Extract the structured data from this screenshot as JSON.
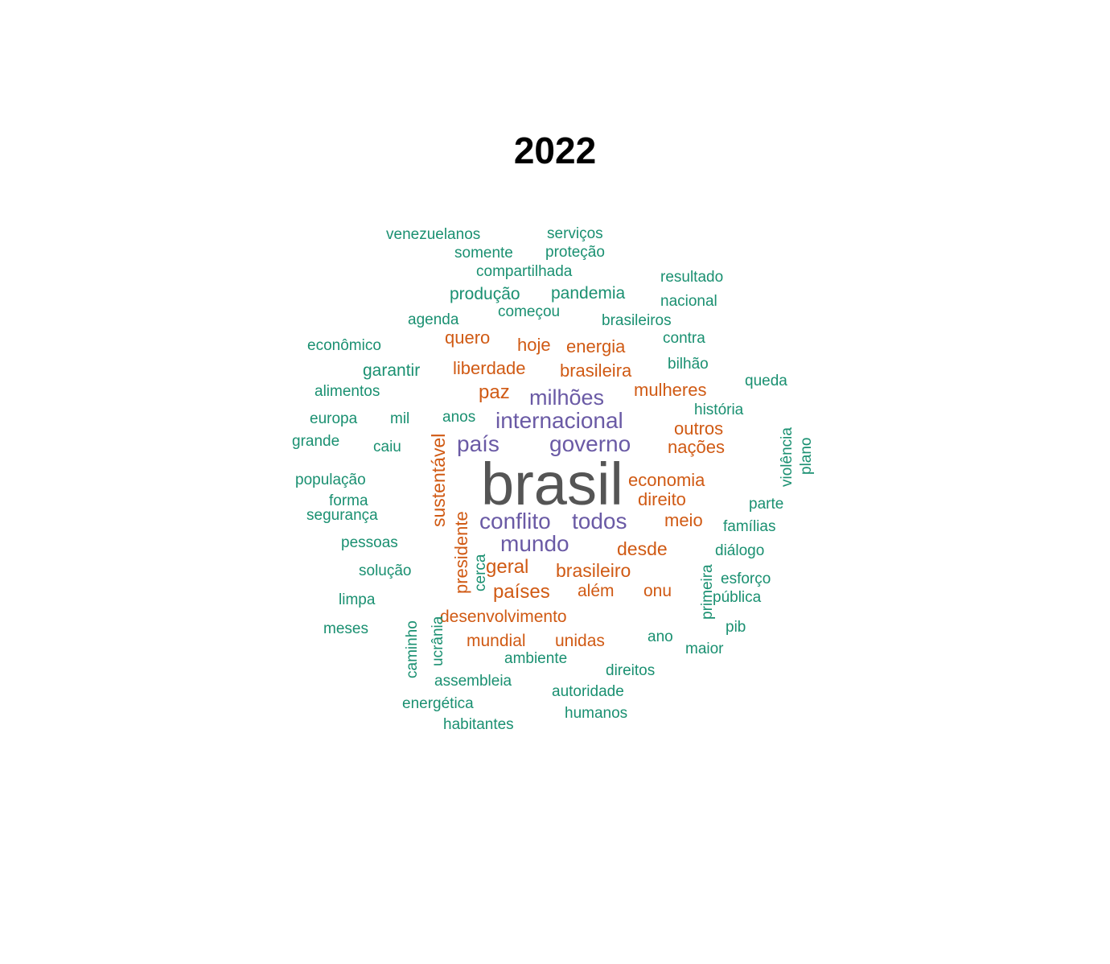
{
  "chart_data": {
    "type": "wordcloud",
    "title": "2022",
    "colors": {
      "tier_top": "#555555",
      "tier_high": "#6a5aa5",
      "tier_mid": "#d05a14",
      "tier_low": "#1a9071"
    },
    "words": [
      {
        "text": "brasil",
        "tier": "tier_top",
        "weight": 100
      },
      {
        "text": "país",
        "tier": "tier_high",
        "weight": 38
      },
      {
        "text": "governo",
        "tier": "tier_high",
        "weight": 38
      },
      {
        "text": "internacional",
        "tier": "tier_high",
        "weight": 38
      },
      {
        "text": "milhões",
        "tier": "tier_high",
        "weight": 36
      },
      {
        "text": "conflito",
        "tier": "tier_high",
        "weight": 38
      },
      {
        "text": "todos",
        "tier": "tier_high",
        "weight": 38
      },
      {
        "text": "mundo",
        "tier": "tier_high",
        "weight": 38
      },
      {
        "text": "quero",
        "tier": "tier_mid",
        "weight": 30
      },
      {
        "text": "hoje",
        "tier": "tier_mid",
        "weight": 30
      },
      {
        "text": "energia",
        "tier": "tier_mid",
        "weight": 30
      },
      {
        "text": "liberdade",
        "tier": "tier_mid",
        "weight": 30
      },
      {
        "text": "brasileira",
        "tier": "tier_mid",
        "weight": 30
      },
      {
        "text": "paz",
        "tier": "tier_mid",
        "weight": 33
      },
      {
        "text": "mulheres",
        "tier": "tier_mid",
        "weight": 30
      },
      {
        "text": "outros",
        "tier": "tier_mid",
        "weight": 30
      },
      {
        "text": "nações",
        "tier": "tier_mid",
        "weight": 30
      },
      {
        "text": "sustentável",
        "tier": "tier_mid",
        "weight": 31
      },
      {
        "text": "presidente",
        "tier": "tier_mid",
        "weight": 30
      },
      {
        "text": "economia",
        "tier": "tier_mid",
        "weight": 30
      },
      {
        "text": "direito",
        "tier": "tier_mid",
        "weight": 30
      },
      {
        "text": "meio",
        "tier": "tier_mid",
        "weight": 30
      },
      {
        "text": "desde",
        "tier": "tier_mid",
        "weight": 31
      },
      {
        "text": "geral",
        "tier": "tier_mid",
        "weight": 33
      },
      {
        "text": "brasileiro",
        "tier": "tier_mid",
        "weight": 31
      },
      {
        "text": "países",
        "tier": "tier_mid",
        "weight": 33
      },
      {
        "text": "além",
        "tier": "tier_mid",
        "weight": 29
      },
      {
        "text": "onu",
        "tier": "tier_mid",
        "weight": 29
      },
      {
        "text": "desenvolvimento",
        "tier": "tier_mid",
        "weight": 29
      },
      {
        "text": "mundial",
        "tier": "tier_mid",
        "weight": 29
      },
      {
        "text": "unidas",
        "tier": "tier_mid",
        "weight": 29
      },
      {
        "text": "venezuelanos",
        "tier": "tier_low",
        "weight": 26
      },
      {
        "text": "serviços",
        "tier": "tier_low",
        "weight": 26
      },
      {
        "text": "somente",
        "tier": "tier_low",
        "weight": 26
      },
      {
        "text": "proteção",
        "tier": "tier_low",
        "weight": 26
      },
      {
        "text": "compartilhada",
        "tier": "tier_low",
        "weight": 26
      },
      {
        "text": "resultado",
        "tier": "tier_low",
        "weight": 26
      },
      {
        "text": "produção",
        "tier": "tier_low",
        "weight": 28
      },
      {
        "text": "pandemia",
        "tier": "tier_low",
        "weight": 28
      },
      {
        "text": "nacional",
        "tier": "tier_low",
        "weight": 26
      },
      {
        "text": "começou",
        "tier": "tier_low",
        "weight": 26
      },
      {
        "text": "agenda",
        "tier": "tier_low",
        "weight": 26
      },
      {
        "text": "brasileiros",
        "tier": "tier_low",
        "weight": 26
      },
      {
        "text": "econômico",
        "tier": "tier_low",
        "weight": 26
      },
      {
        "text": "contra",
        "tier": "tier_low",
        "weight": 26
      },
      {
        "text": "garantir",
        "tier": "tier_low",
        "weight": 28
      },
      {
        "text": "bilhão",
        "tier": "tier_low",
        "weight": 26
      },
      {
        "text": "queda",
        "tier": "tier_low",
        "weight": 26
      },
      {
        "text": "alimentos",
        "tier": "tier_low",
        "weight": 26
      },
      {
        "text": "história",
        "tier": "tier_low",
        "weight": 26
      },
      {
        "text": "europa",
        "tier": "tier_low",
        "weight": 26
      },
      {
        "text": "mil",
        "tier": "tier_low",
        "weight": 26
      },
      {
        "text": "anos",
        "tier": "tier_low",
        "weight": 26
      },
      {
        "text": "violência",
        "tier": "tier_low",
        "weight": 26
      },
      {
        "text": "plano",
        "tier": "tier_low",
        "weight": 26
      },
      {
        "text": "grande",
        "tier": "tier_low",
        "weight": 26
      },
      {
        "text": "caiu",
        "tier": "tier_low",
        "weight": 26
      },
      {
        "text": "população",
        "tier": "tier_low",
        "weight": 26
      },
      {
        "text": "forma",
        "tier": "tier_low",
        "weight": 26
      },
      {
        "text": "parte",
        "tier": "tier_low",
        "weight": 26
      },
      {
        "text": "segurança",
        "tier": "tier_low",
        "weight": 26
      },
      {
        "text": "famílias",
        "tier": "tier_low",
        "weight": 26
      },
      {
        "text": "pessoas",
        "tier": "tier_low",
        "weight": 26
      },
      {
        "text": "cerca",
        "tier": "tier_low",
        "weight": 26
      },
      {
        "text": "diálogo",
        "tier": "tier_low",
        "weight": 26
      },
      {
        "text": "primeira",
        "tier": "tier_low",
        "weight": 26
      },
      {
        "text": "solução",
        "tier": "tier_low",
        "weight": 26
      },
      {
        "text": "esforço",
        "tier": "tier_low",
        "weight": 26
      },
      {
        "text": "limpa",
        "tier": "tier_low",
        "weight": 26
      },
      {
        "text": "pública",
        "tier": "tier_low",
        "weight": 26
      },
      {
        "text": "caminho",
        "tier": "tier_low",
        "weight": 26
      },
      {
        "text": "ucrânia",
        "tier": "tier_low",
        "weight": 26
      },
      {
        "text": "pib",
        "tier": "tier_low",
        "weight": 26
      },
      {
        "text": "meses",
        "tier": "tier_low",
        "weight": 26
      },
      {
        "text": "ano",
        "tier": "tier_low",
        "weight": 26
      },
      {
        "text": "maior",
        "tier": "tier_low",
        "weight": 26
      },
      {
        "text": "ambiente",
        "tier": "tier_low",
        "weight": 26
      },
      {
        "text": "direitos",
        "tier": "tier_low",
        "weight": 26
      },
      {
        "text": "assembleia",
        "tier": "tier_low",
        "weight": 26
      },
      {
        "text": "autoridade",
        "tier": "tier_low",
        "weight": 26
      },
      {
        "text": "energética",
        "tier": "tier_low",
        "weight": 26
      },
      {
        "text": "humanos",
        "tier": "tier_low",
        "weight": 26
      },
      {
        "text": "habitantes",
        "tier": "tier_low",
        "weight": 26
      }
    ]
  }
}
